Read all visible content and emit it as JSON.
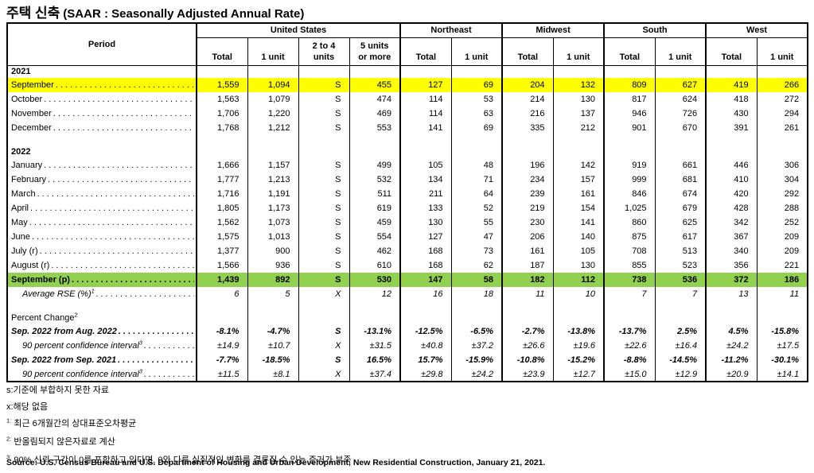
{
  "title": {
    "korean": "주택 신축",
    "english": "(SAAR : Seasonally Adjusted Annual Rate)"
  },
  "colors": {
    "highlight_yellow": "#FFFF00",
    "highlight_green": "#92D050",
    "border": "#000000"
  },
  "table": {
    "period_header": "Period",
    "groups": [
      {
        "label": "United States",
        "columns": [
          "Total",
          "1 unit",
          "2 to 4\nunits",
          "5 units\nor more"
        ]
      },
      {
        "label": "Northeast",
        "columns": [
          "Total",
          "1 unit"
        ]
      },
      {
        "label": "Midwest",
        "columns": [
          "Total",
          "1 unit"
        ]
      },
      {
        "label": "South",
        "columns": [
          "Total",
          "1 unit"
        ]
      },
      {
        "label": "West",
        "columns": [
          "Total",
          "1 unit"
        ]
      }
    ],
    "rows": [
      {
        "type": "section",
        "label": "2021",
        "style": "bold"
      },
      {
        "type": "data",
        "label": "September",
        "leader": true,
        "highlight": "yellow",
        "values": [
          "1,559",
          "1,094",
          "S",
          "455",
          "127",
          "69",
          "204",
          "132",
          "809",
          "627",
          "419",
          "266"
        ]
      },
      {
        "type": "data",
        "label": "October",
        "leader": true,
        "values": [
          "1,563",
          "1,079",
          "S",
          "474",
          "114",
          "53",
          "214",
          "130",
          "817",
          "624",
          "418",
          "272"
        ]
      },
      {
        "type": "data",
        "label": "November",
        "leader": true,
        "values": [
          "1,706",
          "1,220",
          "S",
          "469",
          "114",
          "63",
          "216",
          "137",
          "946",
          "726",
          "430",
          "294"
        ]
      },
      {
        "type": "data",
        "label": "December",
        "leader": true,
        "values": [
          "1,768",
          "1,212",
          "S",
          "553",
          "141",
          "69",
          "335",
          "212",
          "901",
          "670",
          "391",
          "261"
        ]
      },
      {
        "type": "blank"
      },
      {
        "type": "section",
        "label": "2022",
        "style": "bold"
      },
      {
        "type": "data",
        "label": "January",
        "leader": true,
        "values": [
          "1,666",
          "1,157",
          "S",
          "499",
          "105",
          "48",
          "196",
          "142",
          "919",
          "661",
          "446",
          "306"
        ]
      },
      {
        "type": "data",
        "label": "February",
        "leader": true,
        "values": [
          "1,777",
          "1,213",
          "S",
          "532",
          "134",
          "71",
          "234",
          "157",
          "999",
          "681",
          "410",
          "304"
        ]
      },
      {
        "type": "data",
        "label": "March",
        "leader": true,
        "values": [
          "1,716",
          "1,191",
          "S",
          "511",
          "211",
          "64",
          "239",
          "161",
          "846",
          "674",
          "420",
          "292"
        ]
      },
      {
        "type": "data",
        "label": "April",
        "leader": true,
        "values": [
          "1,805",
          "1,173",
          "S",
          "619",
          "133",
          "52",
          "219",
          "154",
          "1,025",
          "679",
          "428",
          "288"
        ]
      },
      {
        "type": "data",
        "label": "May",
        "leader": true,
        "values": [
          "1,562",
          "1,073",
          "S",
          "459",
          "130",
          "55",
          "230",
          "141",
          "860",
          "625",
          "342",
          "252"
        ]
      },
      {
        "type": "data",
        "label": "June",
        "leader": true,
        "values": [
          "1,575",
          "1,013",
          "S",
          "554",
          "127",
          "47",
          "206",
          "140",
          "875",
          "617",
          "367",
          "209"
        ]
      },
      {
        "type": "data",
        "label": "July (r)",
        "leader": true,
        "values": [
          "1,377",
          "900",
          "S",
          "462",
          "168",
          "73",
          "161",
          "105",
          "708",
          "513",
          "340",
          "209"
        ]
      },
      {
        "type": "data",
        "label": "August (r)",
        "leader": true,
        "values": [
          "1,566",
          "936",
          "S",
          "610",
          "168",
          "62",
          "187",
          "130",
          "855",
          "523",
          "356",
          "221"
        ]
      },
      {
        "type": "data",
        "label": "September (p)",
        "leader": true,
        "highlight": "green",
        "style": "bold",
        "values": [
          "1,439",
          "892",
          "S",
          "530",
          "147",
          "58",
          "182",
          "112",
          "738",
          "536",
          "372",
          "186"
        ]
      },
      {
        "type": "data",
        "label": "Average RSE (%)",
        "sup": "1",
        "leader": true,
        "style": "italic",
        "indent": true,
        "values": [
          "6",
          "5",
          "X",
          "12",
          "16",
          "18",
          "11",
          "10",
          "7",
          "7",
          "13",
          "11"
        ]
      },
      {
        "type": "blank"
      },
      {
        "type": "section",
        "label": "Percent Change",
        "sup": "2",
        "style": "normal"
      },
      {
        "type": "data",
        "label": "Sep. 2022 from Aug. 2022",
        "leader": true,
        "style": "bold-italic",
        "values": [
          "-8.1%",
          "-4.7%",
          "S",
          "-13.1%",
          "-12.5%",
          "-6.5%",
          "-2.7%",
          "-13.8%",
          "-13.7%",
          "2.5%",
          "4.5%",
          "-15.8%"
        ]
      },
      {
        "type": "data",
        "label": "90 percent confidence interval",
        "sup": "3",
        "leader": true,
        "style": "italic",
        "indent": true,
        "values": [
          "±14.9",
          "±10.7",
          "X",
          "±31.5",
          "±40.8",
          "±37.2",
          "±26.6",
          "±19.6",
          "±22.6",
          "±16.4",
          "±24.2",
          "±17.5"
        ]
      },
      {
        "type": "data",
        "label": "Sep. 2022 from Sep. 2021",
        "leader": true,
        "style": "bold-italic",
        "values": [
          "-7.7%",
          "-18.5%",
          "S",
          "16.5%",
          "15.7%",
          "-15.9%",
          "-10.8%",
          "-15.2%",
          "-8.8%",
          "-14.5%",
          "-11.2%",
          "-30.1%"
        ]
      },
      {
        "type": "data",
        "label": "90 percent confidence interval",
        "sup": "3",
        "leader": true,
        "style": "italic",
        "indent": true,
        "values": [
          "±11.5",
          "±8.1",
          "X",
          "±37.4",
          "±29.8",
          "±24.2",
          "±23.9",
          "±12.7",
          "±15.0",
          "±12.9",
          "±20.9",
          "±14.1"
        ]
      }
    ]
  },
  "footnotes": [
    {
      "sup": "",
      "text": "s:기준에 부합하지 못한 자료"
    },
    {
      "sup": "",
      "text": "x:해당 없음"
    },
    {
      "sup": "1:",
      "text": "최근 6개월간의 상대표준오차평균"
    },
    {
      "sup": "2:",
      "text": "반올림되지 않은자료로 계산"
    },
    {
      "sup": "3:",
      "text": "90% 신뢰 구간이 0를 포함하고 있다면, 0와 다른 실질적인 변화를 결론질 수 있는 증거가 부족"
    }
  ],
  "source": "Source: U.S. Census Bureau and U.S. Department of Housing and Urban Development, New Residential Construction, January 21, 2021."
}
